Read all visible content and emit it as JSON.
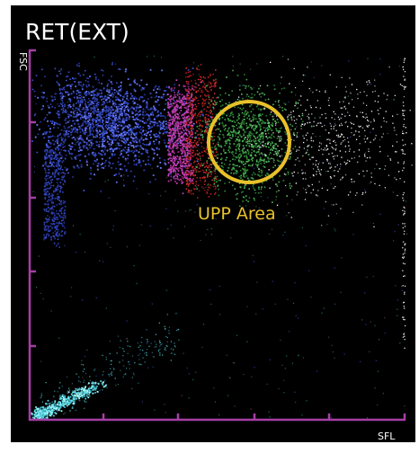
{
  "header": {
    "title": "RET(EXT)"
  },
  "plot": {
    "y_axis_label": "FSC",
    "x_axis_label": "SFL",
    "annotation": "UPP Area"
  }
}
